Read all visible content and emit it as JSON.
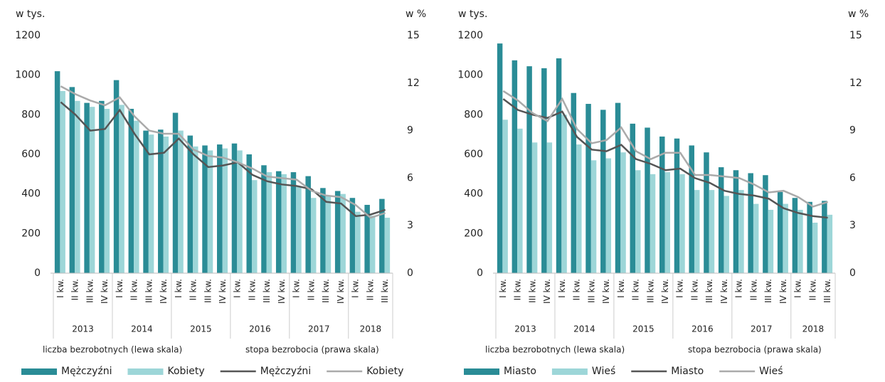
{
  "chart_data": [
    {
      "type": "bar",
      "y_label": "w tys.",
      "y2_label": "w %",
      "legend_groups": [
        "liczba bezrobotnych (lewa skala)",
        "stopa bezrobocia (prawa skala)"
      ],
      "categories": [
        "I kw.",
        "II kw.",
        "III kw.",
        "IV kw.",
        "I kw.",
        "II kw.",
        "III kw.",
        "IV kw.",
        "I kw.",
        "II kw.",
        "III kw.",
        "IV kw.",
        "I kw.",
        "II kw.",
        "III kw.",
        "IV kw.",
        "I kw.",
        "II kw.",
        "III kw.",
        "IV kw.",
        "I kw.",
        "II kw.",
        "III kw."
      ],
      "groups": [
        "2013",
        "2014",
        "2015",
        "2016",
        "2017",
        "2018"
      ],
      "group_sizes": [
        4,
        4,
        4,
        4,
        4,
        3
      ],
      "ylim": [
        0,
        1200
      ],
      "yticks": [
        0,
        200,
        400,
        600,
        800,
        1000,
        1200
      ],
      "y2lim": [
        0,
        15
      ],
      "y2ticks": [
        0,
        3,
        6,
        9,
        12,
        15
      ],
      "series": [
        {
          "name": "Mężczyźni",
          "type": "bar",
          "color": "#2a8c96",
          "values": [
            1020,
            940,
            860,
            870,
            975,
            830,
            720,
            725,
            810,
            695,
            645,
            650,
            655,
            600,
            545,
            515,
            510,
            490,
            430,
            415,
            380,
            345,
            375
          ]
        },
        {
          "name": "Kobiety",
          "type": "bar",
          "color": "#9dd6d8",
          "values": [
            920,
            870,
            840,
            830,
            850,
            770,
            700,
            690,
            720,
            640,
            620,
            630,
            620,
            470,
            510,
            500,
            440,
            380,
            390,
            400,
            310,
            290,
            280
          ]
        },
        {
          "name": "Mężczyźni",
          "type": "line",
          "axis": "y2",
          "color": "#555555",
          "values": [
            10.8,
            10.0,
            9.0,
            9.1,
            10.3,
            8.8,
            7.5,
            7.6,
            8.5,
            7.5,
            6.7,
            6.8,
            7.0,
            6.2,
            5.8,
            5.6,
            5.5,
            5.3,
            4.5,
            4.4,
            3.6,
            3.7,
            4.0
          ]
        },
        {
          "name": "Kobiety",
          "type": "line",
          "axis": "y2",
          "color": "#aaaaaa",
          "values": [
            11.8,
            11.3,
            10.9,
            10.6,
            11.1,
            9.9,
            9.0,
            8.8,
            8.8,
            7.8,
            7.4,
            7.3,
            7.0,
            6.6,
            6.1,
            6.0,
            5.9,
            5.2,
            4.9,
            4.8,
            4.3,
            3.5,
            3.8
          ]
        }
      ]
    },
    {
      "type": "bar",
      "y_label": "w tys.",
      "y2_label": "w %",
      "legend_groups": [
        "liczba bezrobotnych (lewa skala)",
        "stopa bezrobocia (prawa skala)"
      ],
      "categories": [
        "I kw.",
        "II kw.",
        "III kw.",
        "IV kw.",
        "I kw.",
        "II kw.",
        "III kw.",
        "IV kw.",
        "I kw.",
        "II kw.",
        "III kw.",
        "IV kw.",
        "I kw.",
        "II kw.",
        "III kw.",
        "IV kw.",
        "I kw.",
        "II kw.",
        "III kw.",
        "IV kw.",
        "I kw.",
        "II kw.",
        "III kw."
      ],
      "groups": [
        "2013",
        "2014",
        "2015",
        "2016",
        "2017",
        "2018"
      ],
      "group_sizes": [
        4,
        4,
        4,
        4,
        4,
        3
      ],
      "ylim": [
        0,
        1200
      ],
      "yticks": [
        0,
        200,
        400,
        600,
        800,
        1000,
        1200
      ],
      "y2lim": [
        0,
        15
      ],
      "y2ticks": [
        0,
        3,
        6,
        9,
        12,
        15
      ],
      "series": [
        {
          "name": "Miasto",
          "type": "bar",
          "color": "#2a8c96",
          "values": [
            1160,
            1075,
            1045,
            1035,
            1085,
            910,
            855,
            825,
            860,
            755,
            735,
            690,
            680,
            645,
            610,
            535,
            520,
            505,
            495,
            410,
            380,
            360,
            365
          ]
        },
        {
          "name": "Wieś",
          "type": "bar",
          "color": "#9dd6d8",
          "values": [
            775,
            730,
            660,
            660,
            800,
            650,
            570,
            580,
            610,
            520,
            500,
            510,
            500,
            420,
            420,
            390,
            420,
            350,
            320,
            350,
            320,
            255,
            295
          ]
        },
        {
          "name": "Miasto",
          "type": "line",
          "axis": "y2",
          "color": "#555555",
          "values": [
            11.0,
            10.3,
            10.0,
            9.8,
            10.2,
            8.6,
            7.8,
            7.7,
            8.1,
            7.2,
            6.9,
            6.5,
            6.6,
            6.0,
            5.7,
            5.2,
            5.0,
            4.9,
            4.7,
            4.1,
            3.8,
            3.6,
            3.5
          ]
        },
        {
          "name": "Wieś",
          "type": "line",
          "axis": "y2",
          "color": "#aaaaaa",
          "values": [
            11.5,
            10.9,
            10.1,
            9.6,
            11.0,
            9.1,
            8.2,
            8.4,
            9.2,
            7.7,
            7.2,
            7.6,
            7.6,
            6.2,
            6.2,
            6.1,
            6.0,
            5.6,
            5.1,
            5.2,
            4.8,
            4.2,
            4.5
          ]
        }
      ]
    }
  ]
}
